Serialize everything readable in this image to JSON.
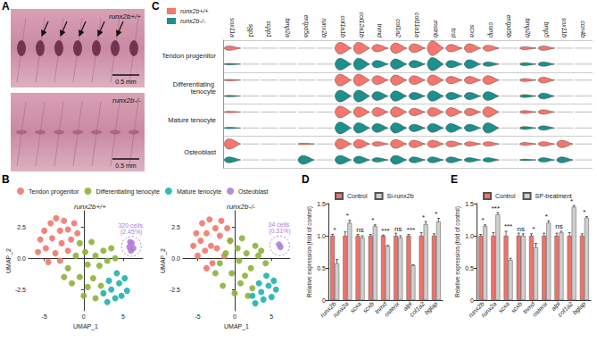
{
  "panel_labels": [
    "A",
    "B",
    "C",
    "D",
    "E"
  ],
  "photos": [
    {
      "label": "runx2b+/+",
      "scale_bar": "0.5 mm"
    },
    {
      "label": "runx2b-/-",
      "scale_bar": "0.5 mm"
    }
  ],
  "chart_data": [
    {
      "type": "scatter",
      "title": "runx2b+/+",
      "x_label": "UMAP_1",
      "y_label": "UMAP_2",
      "xlim": [
        -7,
        7.5
      ],
      "xticks": [
        -5,
        0,
        5
      ],
      "ylim": [
        -4.2,
        3.8
      ],
      "yticks": [
        -2.5,
        {
          "value": 0,
          "label": "0.0"
        },
        2.5
      ],
      "grid": false,
      "legend": "top",
      "series": [
        {
          "name": "Tendon progenitor",
          "color": "#f0786c",
          "x": [
            -5.8,
            -5.5,
            -5,
            -4.8,
            -4.5,
            -4.2,
            -4,
            -3.6,
            -3.5,
            -3,
            -3,
            -2.8,
            -2.5,
            -2,
            -2,
            -1.6,
            -1.2,
            -0.8
          ],
          "y": [
            0.5,
            1.5,
            2.2,
            0.8,
            -0.3,
            2.8,
            1.6,
            0.4,
            3.2,
            2.2,
            -0.2,
            1.2,
            3.0,
            2.3,
            0.6,
            1.5,
            2.8,
            2.0
          ]
        },
        {
          "name": "Differentiating tenocyte",
          "color": "#8db33a",
          "x": [
            -2.5,
            -2,
            -1.5,
            -1,
            -0.5,
            -0.5,
            0,
            0.2,
            0.5,
            0.5,
            1,
            1.2,
            1.5,
            1.5,
            2,
            2.2,
            2.5,
            3,
            3.5,
            4
          ],
          "y": [
            -1.5,
            -0.8,
            -2,
            0.2,
            1.2,
            -1.5,
            -3,
            0.5,
            -0.5,
            -2.3,
            1.3,
            -1.6,
            0.2,
            -3.2,
            -0.6,
            -2.2,
            0.6,
            -0.2,
            0.8,
            0
          ]
        },
        {
          "name": "Mature tenocyte",
          "color": "#1fb3ad",
          "x": [
            2.5,
            3,
            3.2,
            3.5,
            4,
            4.2,
            4.5,
            4.8,
            5.2,
            5.5
          ],
          "y": [
            -2.8,
            -3.5,
            -1.8,
            -2.5,
            -3.2,
            -1.2,
            -2,
            -3,
            -1.6,
            -2.6
          ]
        },
        {
          "name": "Osteoblast",
          "color": "#b180d6",
          "x": [
            5.8,
            5.9,
            6,
            6.1,
            6.3
          ],
          "y": [
            0.9,
            1.3,
            0.6,
            1.2,
            0.8
          ]
        }
      ],
      "annotations": [
        {
          "x": 6.05,
          "y": 0.95,
          "text": "320 cells (2.45%)"
        }
      ]
    },
    {
      "type": "scatter",
      "title": "runx2b-/-",
      "x_label": "UMAP_1",
      "y_label": "UMAP_2",
      "xlim": [
        -7,
        7.5
      ],
      "xticks": [
        -5,
        0,
        5
      ],
      "ylim": [
        -4.2,
        3.8
      ],
      "yticks": [
        -2.5,
        {
          "value": 0,
          "label": "0.0"
        },
        2.5
      ],
      "grid": false,
      "series": [
        {
          "name": "Tendon progenitor",
          "color": "#f0786c",
          "x": [
            -5.6,
            -5.2,
            -5,
            -4.6,
            -4.4,
            -4,
            -3.8,
            -3.4,
            -3.2,
            -3,
            -2.6,
            -2.4,
            -2,
            -1.8,
            -1.4,
            -1,
            -0.6,
            -3.8
          ],
          "y": [
            1,
            2,
            0.2,
            1.4,
            2.8,
            0.6,
            2,
            3.1,
            1,
            -0.4,
            2.4,
            0.8,
            1.8,
            3,
            0.2,
            2.4,
            1.4,
            -0.8
          ]
        },
        {
          "name": "Differentiating tenocyte",
          "color": "#8db33a",
          "x": [
            -2.6,
            -2,
            -1.6,
            -1.2,
            -0.6,
            -0.4,
            0,
            0.4,
            0.6,
            0.8,
            1,
            1.4,
            1.6,
            1.8,
            2.2,
            2.4,
            2.8,
            3.2,
            3.6,
            4.2
          ],
          "y": [
            -1.2,
            -0.4,
            -2.2,
            0.4,
            1.4,
            -1.2,
            -2.8,
            0.8,
            -0.2,
            -2,
            1.6,
            -1.4,
            0.4,
            -3,
            -0.8,
            -2.4,
            1,
            0.2,
            0.6,
            -0.4
          ]
        },
        {
          "name": "Mature tenocyte",
          "color": "#1fb3ad",
          "x": [
            2.4,
            2.8,
            3.3,
            3.6,
            3.9,
            4.3,
            4.6,
            5,
            5.3,
            5.6
          ],
          "y": [
            -3,
            -3.6,
            -2,
            -2.7,
            -3.3,
            -1.4,
            -2.2,
            -3.1,
            -1.8,
            -2.5
          ]
        },
        {
          "name": "Osteoblast",
          "color": "#b180d6",
          "x": [
            6.0,
            6.2
          ],
          "y": [
            1.1,
            0.9
          ]
        }
      ],
      "annotations": [
        {
          "x": 6.1,
          "y": 1.0,
          "text": "34 cells (0.31%)"
        }
      ]
    },
    {
      "type": "violin",
      "legend": "top-left",
      "genes": [
        "sox11a",
        "sgp1",
        "scpp1",
        "bmp2a",
        "entpd5a",
        "runx2b",
        "col1a1b",
        "col12a1b",
        "tnmd",
        "col1a2",
        "col11a1a",
        "mstnb",
        "tcsl",
        "scxa",
        "comp",
        "entpd5b",
        "bmp2b",
        "bmp5",
        "sox11b",
        "ccn4b"
      ],
      "cell_types": [
        "Tendon progenitor",
        "Differentiating tenocyte",
        "Mature tenocyte",
        "Osteoblast"
      ],
      "series": [
        {
          "name": "runx2b+/+",
          "color": "#f4766c",
          "values": [
            [
              0.3,
              0,
              0,
              0,
              0,
              0,
              0.8,
              0.8,
              0.5,
              0.7,
              0.6,
              1.0,
              0.5,
              0.6,
              0.4,
              0,
              0.2,
              0.3,
              0,
              0
            ],
            [
              0.1,
              0,
              0,
              0,
              0,
              0,
              0.8,
              0.8,
              0.6,
              0.7,
              0.6,
              0.7,
              0.5,
              0.5,
              0.6,
              0,
              0.2,
              0.4,
              0,
              0
            ],
            [
              0.1,
              0,
              0,
              0,
              0,
              0,
              0.8,
              0.7,
              0.6,
              0.7,
              0.5,
              0.6,
              0.6,
              0.5,
              0.7,
              0,
              0.2,
              0.3,
              0,
              0
            ],
            [
              0.7,
              0,
              0,
              0,
              0.1,
              0,
              0.7,
              0.6,
              0.3,
              0.6,
              0.5,
              0.5,
              0.4,
              0.3,
              0.3,
              0,
              0.2,
              0.3,
              0.5,
              0
            ]
          ]
        },
        {
          "name": "runx2b-/-",
          "color": "#1e8f8b",
          "values": [
            [
              0.1,
              0,
              0,
              0,
              0,
              0,
              0.8,
              0.8,
              0.5,
              0.7,
              0.5,
              0.9,
              0.5,
              0.6,
              0.3,
              0,
              0.2,
              0.3,
              0,
              0
            ],
            [
              0.1,
              0,
              0,
              0,
              0,
              0,
              0.8,
              0.8,
              0.6,
              0.7,
              0.5,
              0.7,
              0.5,
              0.5,
              0.6,
              0,
              0.2,
              0.4,
              0,
              0
            ],
            [
              0.1,
              0,
              0,
              0,
              0,
              0,
              0.8,
              0.7,
              0.6,
              0.7,
              0.5,
              0.6,
              0.6,
              0.5,
              0.7,
              0,
              0.2,
              0.3,
              0,
              0
            ],
            [
              0.4,
              0,
              0,
              0,
              0.6,
              0,
              0.6,
              0.5,
              0.3,
              0.6,
              0.4,
              0.4,
              0.4,
              0.3,
              0.3,
              0,
              0.1,
              0.3,
              0.4,
              0
            ]
          ]
        }
      ]
    },
    {
      "type": "bar",
      "y_label": "Relative expression (fold of control)",
      "legend": "top-left",
      "grid": false,
      "categories": [
        "runx2b",
        "runx2a",
        "scxa",
        "scxb",
        "tnmd",
        "osterix",
        "alpl",
        "col1a2",
        "bglap"
      ],
      "ylim": [
        0,
        1.5
      ],
      "yticks": [
        0,
        0.5,
        {
          "value": 1,
          "label": "1.0"
        },
        1.5
      ],
      "series": [
        {
          "name": "Control",
          "color": "#f0736a",
          "values": [
            1.0,
            1.0,
            1.0,
            1.0,
            1.0,
            1.0,
            1.0,
            1.0,
            1.0
          ],
          "errors": [
            0.02,
            0.06,
            0.02,
            0.02,
            0.01,
            0.04,
            0.02,
            0.05,
            0.03
          ]
        },
        {
          "name": "Si-runx2b",
          "color": "#cfcfcf",
          "values": [
            0.57,
            1.2,
            0.97,
            1.15,
            0.84,
            0.97,
            0.54,
            1.18,
            1.22
          ],
          "errors": [
            0.06,
            0.04,
            0.03,
            0.02,
            0.01,
            0.03,
            0.01,
            0.04,
            0.05
          ]
        }
      ],
      "significance": [
        "*",
        "*",
        "ns",
        "*",
        "***",
        "ns",
        "***",
        "*",
        "*"
      ]
    },
    {
      "type": "bar",
      "y_label": "Relative expression (fold of control)",
      "legend": "top-left",
      "grid": false,
      "categories": [
        "runx2b",
        "runx2a",
        "scxa",
        "scxb",
        "tnmd",
        "osterix",
        "alpl",
        "col1a2",
        "bglap"
      ],
      "ylim": [
        0,
        1.5
      ],
      "yticks": [
        0,
        0.5,
        {
          "value": 1,
          "label": "1.0"
        },
        1.5
      ],
      "series": [
        {
          "name": "Control",
          "color": "#f0736a",
          "values": [
            1.0,
            1.0,
            1.0,
            1.0,
            1.0,
            1.0,
            1.0,
            1.0,
            1.0
          ],
          "errors": [
            0.02,
            0.05,
            0.07,
            0.04,
            0.03,
            0.04,
            0.04,
            0.05,
            0.03
          ]
        },
        {
          "name": "SP-treatment",
          "color": "#cfcfcf",
          "values": [
            1.15,
            1.33,
            0.62,
            1.0,
            0.82,
            1.2,
            1.05,
            1.45,
            1.28
          ],
          "errors": [
            0.02,
            0.03,
            0.03,
            0.03,
            0.06,
            0.03,
            0.02,
            0.02,
            0.02
          ]
        }
      ],
      "significance": [
        "*",
        "***",
        "***",
        "ns",
        "*",
        "*",
        "ns",
        "*",
        "*"
      ]
    }
  ]
}
